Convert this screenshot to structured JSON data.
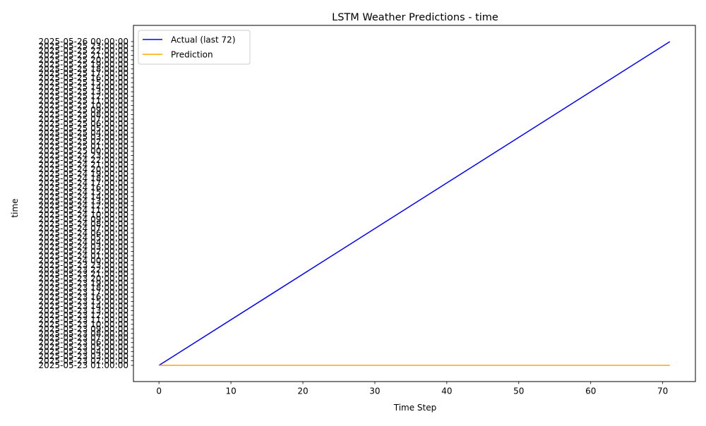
{
  "chart_data": {
    "type": "line",
    "title": "LSTM Weather Predictions - time",
    "xlabel": "Time Step",
    "ylabel": "time",
    "x_ticks": [
      0,
      10,
      20,
      30,
      40,
      50,
      60,
      70
    ],
    "xlim": [
      -3.55,
      74.55
    ],
    "y_categories": [
      "2025-05-23 01:00:00",
      "2025-05-23 02:00:00",
      "2025-05-23 03:00:00",
      "2025-05-23 04:00:00",
      "2025-05-23 05:00:00",
      "2025-05-23 06:00:00",
      "2025-05-23 07:00:00",
      "2025-05-23 08:00:00",
      "2025-05-23 09:00:00",
      "2025-05-23 10:00:00",
      "2025-05-23 11:00:00",
      "2025-05-23 12:00:00",
      "2025-05-23 13:00:00",
      "2025-05-23 14:00:00",
      "2025-05-23 15:00:00",
      "2025-05-23 16:00:00",
      "2025-05-23 17:00:00",
      "2025-05-23 18:00:00",
      "2025-05-23 19:00:00",
      "2025-05-23 20:00:00",
      "2025-05-23 21:00:00",
      "2025-05-23 22:00:00",
      "2025-05-23 23:00:00",
      "2025-05-24 00:00:00",
      "2025-05-24 01:00:00",
      "2025-05-24 02:00:00",
      "2025-05-24 03:00:00",
      "2025-05-24 04:00:00",
      "2025-05-24 05:00:00",
      "2025-05-24 06:00:00",
      "2025-05-24 07:00:00",
      "2025-05-24 08:00:00",
      "2025-05-24 09:00:00",
      "2025-05-24 10:00:00",
      "2025-05-24 11:00:00",
      "2025-05-24 12:00:00",
      "2025-05-24 13:00:00",
      "2025-05-24 14:00:00",
      "2025-05-24 15:00:00",
      "2025-05-24 16:00:00",
      "2025-05-24 17:00:00",
      "2025-05-24 18:00:00",
      "2025-05-24 19:00:00",
      "2025-05-24 20:00:00",
      "2025-05-24 21:00:00",
      "2025-05-24 22:00:00",
      "2025-05-24 23:00:00",
      "2025-05-25 00:00:00",
      "2025-05-25 01:00:00",
      "2025-05-25 02:00:00",
      "2025-05-25 03:00:00",
      "2025-05-25 04:00:00",
      "2025-05-25 05:00:00",
      "2025-05-25 06:00:00",
      "2025-05-25 07:00:00",
      "2025-05-25 08:00:00",
      "2025-05-25 09:00:00",
      "2025-05-25 10:00:00",
      "2025-05-25 11:00:00",
      "2025-05-25 12:00:00",
      "2025-05-25 13:00:00",
      "2025-05-25 14:00:00",
      "2025-05-25 15:00:00",
      "2025-05-25 16:00:00",
      "2025-05-25 17:00:00",
      "2025-05-25 18:00:00",
      "2025-05-25 19:00:00",
      "2025-05-25 20:00:00",
      "2025-05-25 21:00:00",
      "2025-05-25 22:00:00",
      "2025-05-25 23:00:00",
      "2025-05-26 00:00:00"
    ],
    "series": [
      {
        "name": "Actual (last 72)",
        "color": "#0000ff",
        "x": [
          0,
          71
        ],
        "y": [
          "2025-05-23 01:00:00",
          "2025-05-26 00:00:00"
        ],
        "note_shape": "straight line stepping one hour per time step"
      },
      {
        "name": "Prediction",
        "color": "#ffa500",
        "x": [
          0,
          71
        ],
        "y": [
          "2025-05-23 01:00:00",
          "2025-05-23 01:00:00"
        ]
      }
    ],
    "grid": false,
    "legend_position": "top-left"
  }
}
